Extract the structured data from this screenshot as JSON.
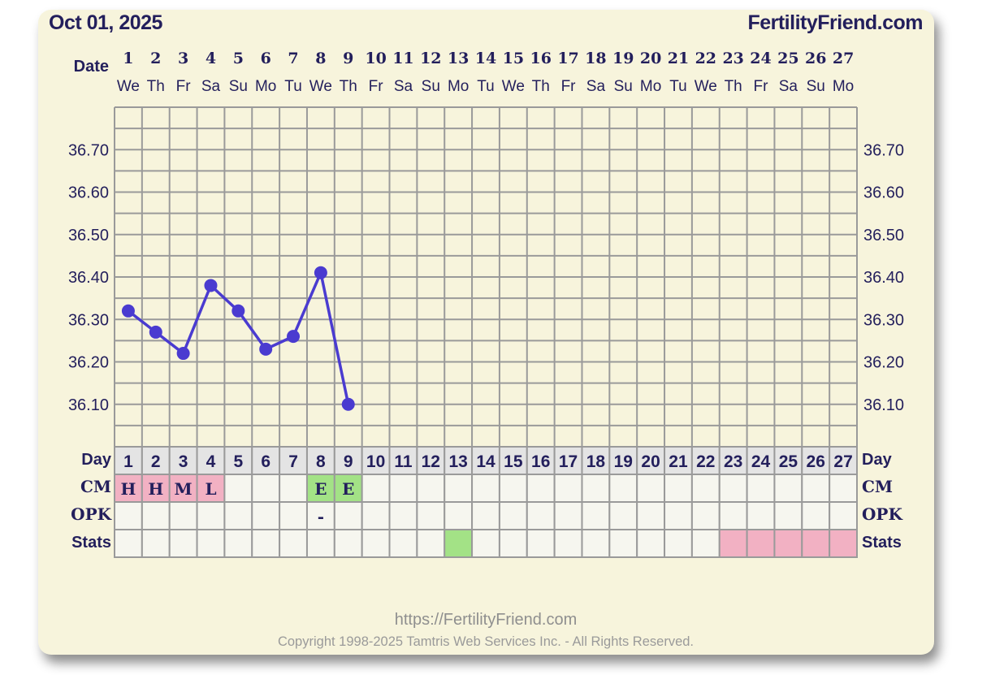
{
  "header": {
    "date": "Oct 01, 2025",
    "site": "FertilityFriend.com"
  },
  "footer": {
    "url": "https://FertilityFriend.com",
    "copyright": "Copyright 1998-2025 Tamtris Web Services Inc. - All Rights Reserved."
  },
  "row_labels": {
    "date": "Date",
    "day": "Day",
    "cm": "CM",
    "opk": "OPK",
    "stats": "Stats"
  },
  "colors": {
    "text": "#231f5c",
    "line": "#4a3bd0",
    "background": "#f7f4dc",
    "grid": "#9a9a9a",
    "pink": "#f2b1c3",
    "green": "#a3e286",
    "cell": "#f6f6ef",
    "day_row": "#e4e4e4"
  },
  "chart_data": {
    "type": "line",
    "title": "",
    "xlabel": "Date",
    "ylabel": "",
    "ylim": [
      36.0,
      36.8
    ],
    "yticks": [
      "36.10",
      "36.20",
      "36.30",
      "36.40",
      "36.50",
      "36.60",
      "36.70"
    ],
    "grid": true,
    "days": [
      1,
      2,
      3,
      4,
      5,
      6,
      7,
      8,
      9,
      10,
      11,
      12,
      13,
      14,
      15,
      16,
      17,
      18,
      19,
      20,
      21,
      22,
      23,
      24,
      25,
      26,
      27
    ],
    "weekdays": [
      "We",
      "Th",
      "Fr",
      "Sa",
      "Su",
      "Mo",
      "Tu",
      "We",
      "Th",
      "Fr",
      "Sa",
      "Su",
      "Mo",
      "Tu",
      "We",
      "Th",
      "Fr",
      "Sa",
      "Su",
      "Mo",
      "Tu",
      "We",
      "Th",
      "Fr",
      "Sa",
      "Su",
      "Mo"
    ],
    "temperatures": [
      36.32,
      36.27,
      36.22,
      36.38,
      36.32,
      36.23,
      36.26,
      36.41,
      36.1
    ],
    "cm": [
      "H",
      "H",
      "M",
      "L",
      "",
      "",
      "",
      "E",
      "E",
      "",
      "",
      "",
      "",
      "",
      "",
      "",
      "",
      "",
      "",
      "",
      "",
      "",
      "",
      "",
      "",
      "",
      ""
    ],
    "cm_colors": [
      "pink",
      "pink",
      "pink",
      "pink",
      "",
      "",
      "",
      "green",
      "green",
      "",
      "",
      "",
      "",
      "",
      "",
      "",
      "",
      "",
      "",
      "",
      "",
      "",
      "",
      "",
      "",
      "",
      ""
    ],
    "opk": [
      "",
      "",
      "",
      "",
      "",
      "",
      "",
      "-",
      "",
      "",
      "",
      "",
      "",
      "",
      "",
      "",
      "",
      "",
      "",
      "",
      "",
      "",
      "",
      "",
      "",
      "",
      ""
    ],
    "stats_colors": [
      "",
      "",
      "",
      "",
      "",
      "",
      "",
      "",
      "",
      "",
      "",
      "",
      "green",
      "",
      "",
      "",
      "",
      "",
      "",
      "",
      "",
      "",
      "pink",
      "pink",
      "pink",
      "pink",
      "pink"
    ]
  }
}
